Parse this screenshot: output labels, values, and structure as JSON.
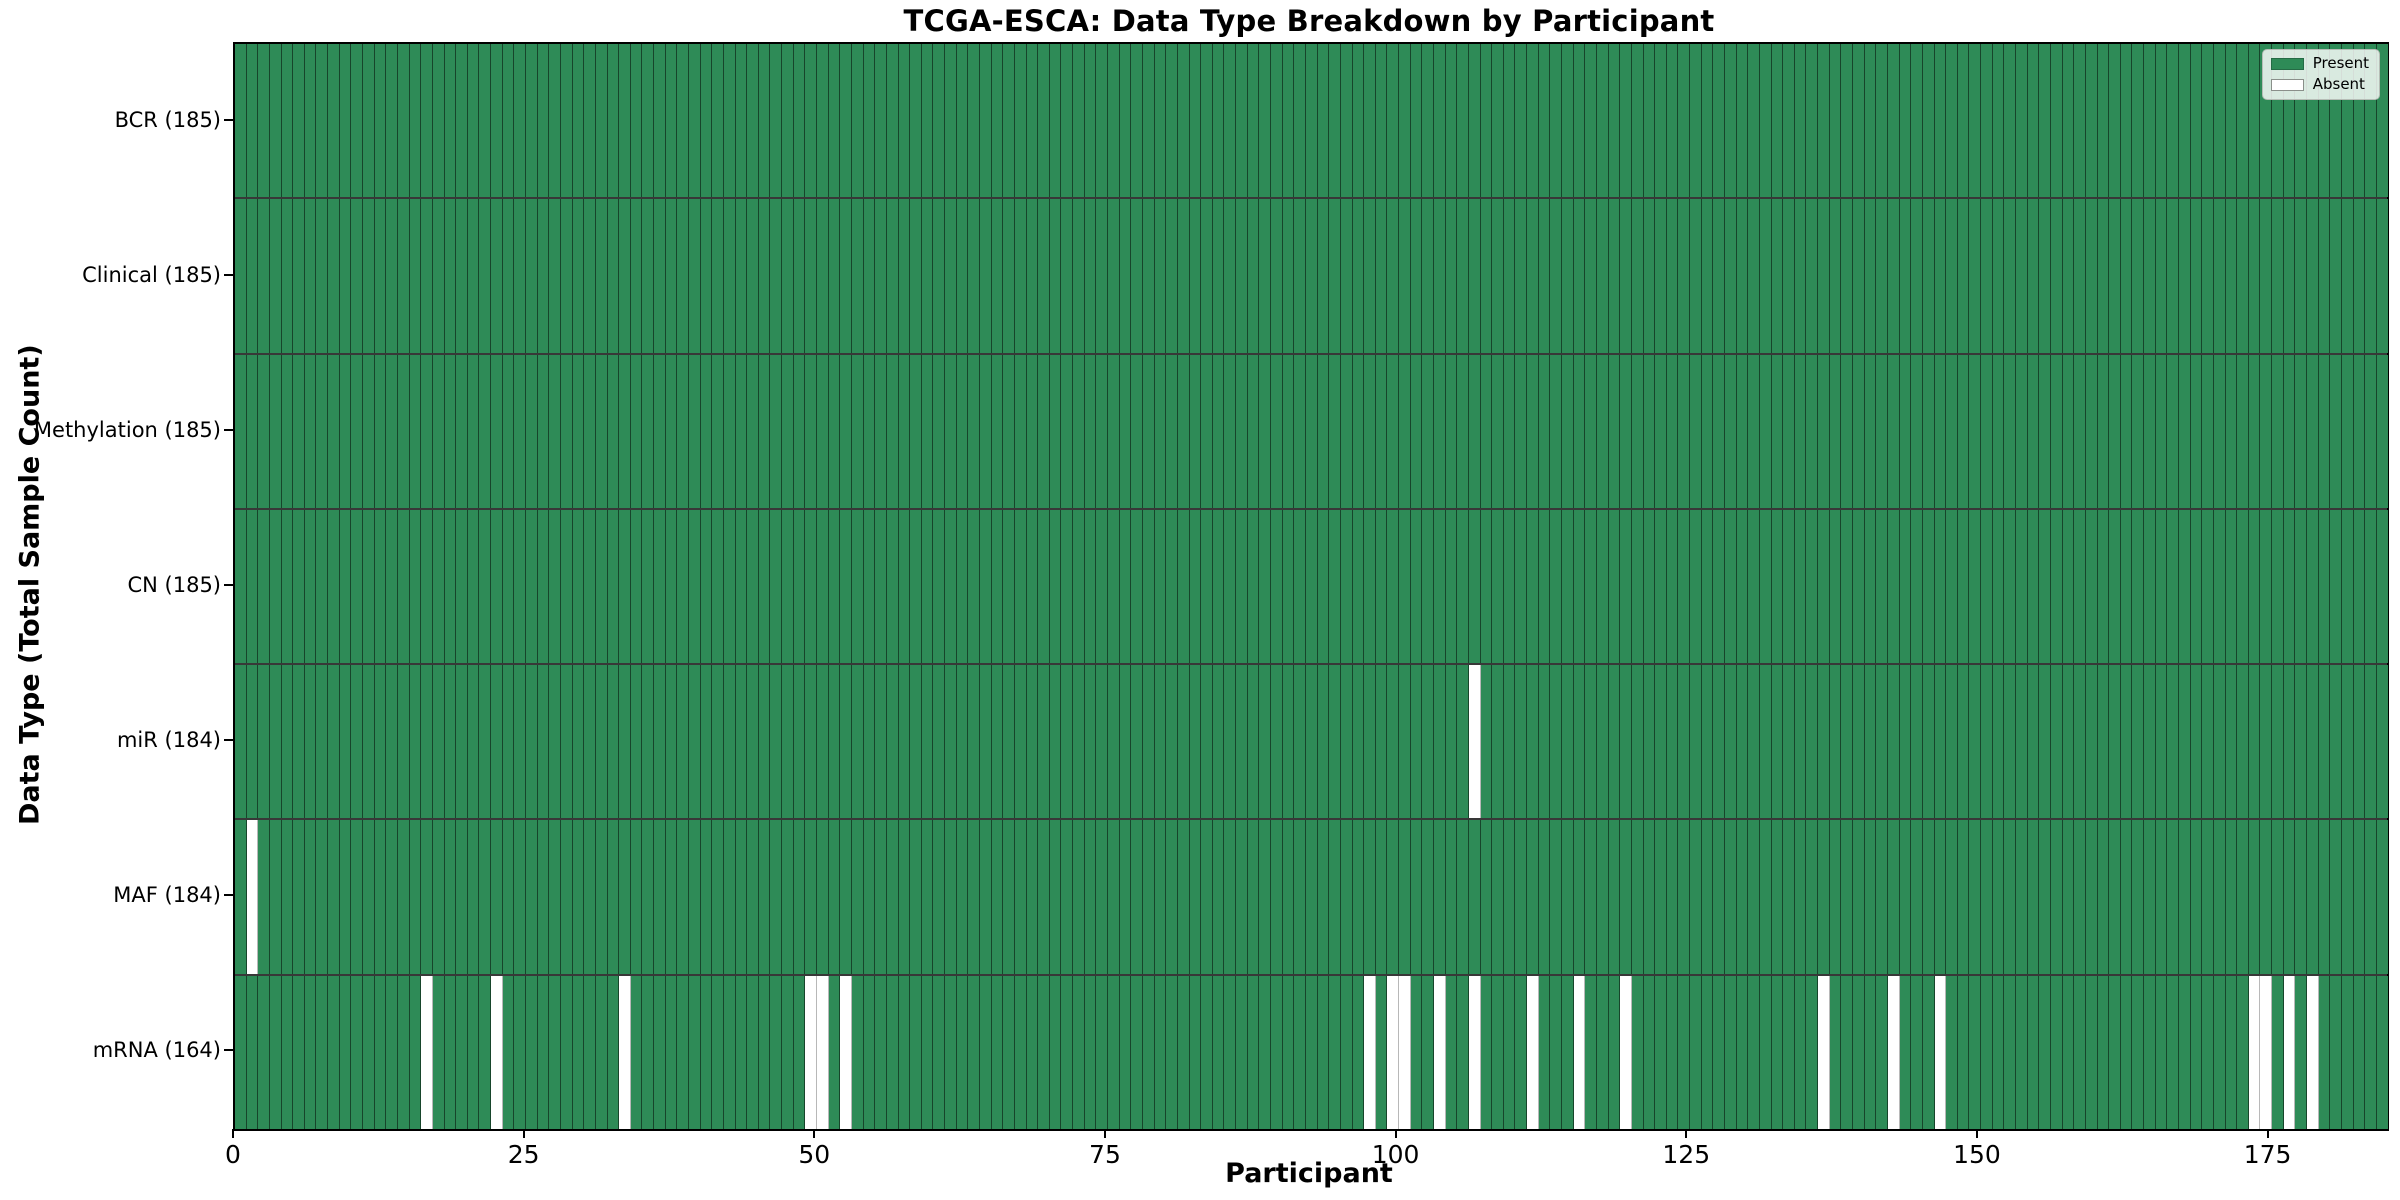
{
  "chart_data": {
    "type": "heatmap",
    "title": "TCGA-ESCA: Data Type Breakdown by Participant",
    "xlabel": "Participant",
    "ylabel": "Data Type (Total Sample Count)",
    "n_participants": 185,
    "xlim": [
      0,
      185
    ],
    "x_ticks": [
      0,
      25,
      50,
      75,
      100,
      125,
      150,
      175
    ],
    "grid": "cell-edges",
    "colors": {
      "present": "#2E8B57",
      "absent": "#FFFFFF",
      "cell_edge": "rgba(0,0,0,0.5)"
    },
    "legend": {
      "position": "upper-right",
      "entries": [
        {
          "label": "Present",
          "color": "#2E8B57"
        },
        {
          "label": "Absent",
          "color": "#FFFFFF"
        }
      ]
    },
    "rows": [
      {
        "label": "BCR (185)",
        "data_type": "BCR",
        "total_sample_count": 185,
        "absent_participants": []
      },
      {
        "label": "Clinical (185)",
        "data_type": "Clinical",
        "total_sample_count": 185,
        "absent_participants": []
      },
      {
        "label": "Methylation (185)",
        "data_type": "Methylation",
        "total_sample_count": 185,
        "absent_participants": []
      },
      {
        "label": "CN (185)",
        "data_type": "CN",
        "total_sample_count": 185,
        "absent_participants": []
      },
      {
        "label": "miR (184)",
        "data_type": "miR",
        "total_sample_count": 184,
        "absent_participants": [
          107
        ]
      },
      {
        "label": "MAF (184)",
        "data_type": "MAF",
        "total_sample_count": 184,
        "absent_participants": [
          2
        ]
      },
      {
        "label": "mRNA (164)",
        "data_type": "mRNA",
        "total_sample_count": 164,
        "absent_participants": [
          17,
          23,
          34,
          50,
          51,
          53,
          98,
          100,
          101,
          104,
          107,
          112,
          116,
          120,
          137,
          143,
          147,
          174,
          175,
          177,
          179
        ]
      }
    ]
  }
}
